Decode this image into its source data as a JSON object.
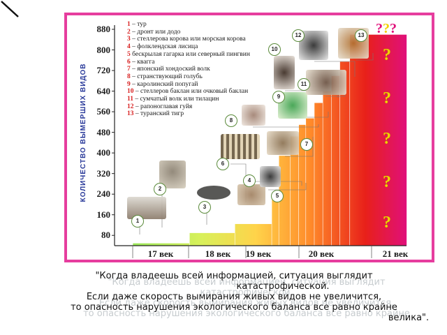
{
  "chart_data": {
    "type": "bar",
    "ylabel": "КОЛИЧЕСТВО ВЫМЕРШИХ ВИДОВ",
    "yticks": [
      "880",
      "800",
      "720",
      "640",
      "560",
      "480",
      "400",
      "320",
      "240",
      "160",
      "80"
    ],
    "ylim": [
      40,
      900
    ],
    "categories": [
      "17 век",
      "18 век",
      "19 век",
      "20 век",
      "21 век"
    ],
    "steps": [
      {
        "century": "17 век",
        "value": 50
      },
      {
        "century": "18 век",
        "value": 90
      },
      {
        "century": "19 век",
        "value": 125
      },
      {
        "century": "19 век",
        "value": 235
      },
      {
        "century": "20 век",
        "value": 390
      },
      {
        "century": "20 век",
        "value": 465
      },
      {
        "century": "20 век",
        "value": 510
      },
      {
        "century": "20 век",
        "value": 535
      },
      {
        "century": "20 век",
        "value": 595
      },
      {
        "century": "20 век",
        "value": 640
      },
      {
        "century": "20 век",
        "value": 700
      },
      {
        "century": "20 век",
        "value": 755
      },
      {
        "century": "21 век",
        "value": 860
      }
    ],
    "legend": [
      {
        "num": "1",
        "text": "– тур"
      },
      {
        "num": "2",
        "text": "– дронт  или  додо"
      },
      {
        "num": "3",
        "text": "– стеллерова корова  или  морская корова"
      },
      {
        "num": "4",
        "text": "– фолклендская лисица"
      },
      {
        "num": "5",
        "text": "  бескрылая гагарка или северный пингвин"
      },
      {
        "num": "6",
        "text": "– квагга"
      },
      {
        "num": "7",
        "text": "– японский хондоский волк"
      },
      {
        "num": "8",
        "text": "– странствующий голубь"
      },
      {
        "num": "9",
        "text": "– каролинский попугай"
      },
      {
        "num": "10",
        "text": "– стеллеров баклан или очковый баклан"
      },
      {
        "num": "11",
        "text": "– сумчатый волк или тилацин"
      },
      {
        "num": "12",
        "text": "– рапоноглавая гуйя"
      },
      {
        "num": "13",
        "text": "– туранский тигр"
      }
    ],
    "question_marks": [
      "?",
      "?",
      "?",
      "?",
      "?"
    ],
    "question_top": "???"
  },
  "colors": {
    "frame": "#e63d9e",
    "title_axis": "#2a3a9a",
    "legend_num": "#d82020",
    "qmark": "#f2d200"
  },
  "quote": {
    "line1": "\"Когда владеешь всей информацией, ситуация выглядит",
    "line2": "катастрофической.",
    "line3": "Если даже скорость вымирания живых видов не увеличится,",
    "line4": "то опасность нарушения экологического баланса все равно крайне",
    "line5": "велика\"."
  }
}
